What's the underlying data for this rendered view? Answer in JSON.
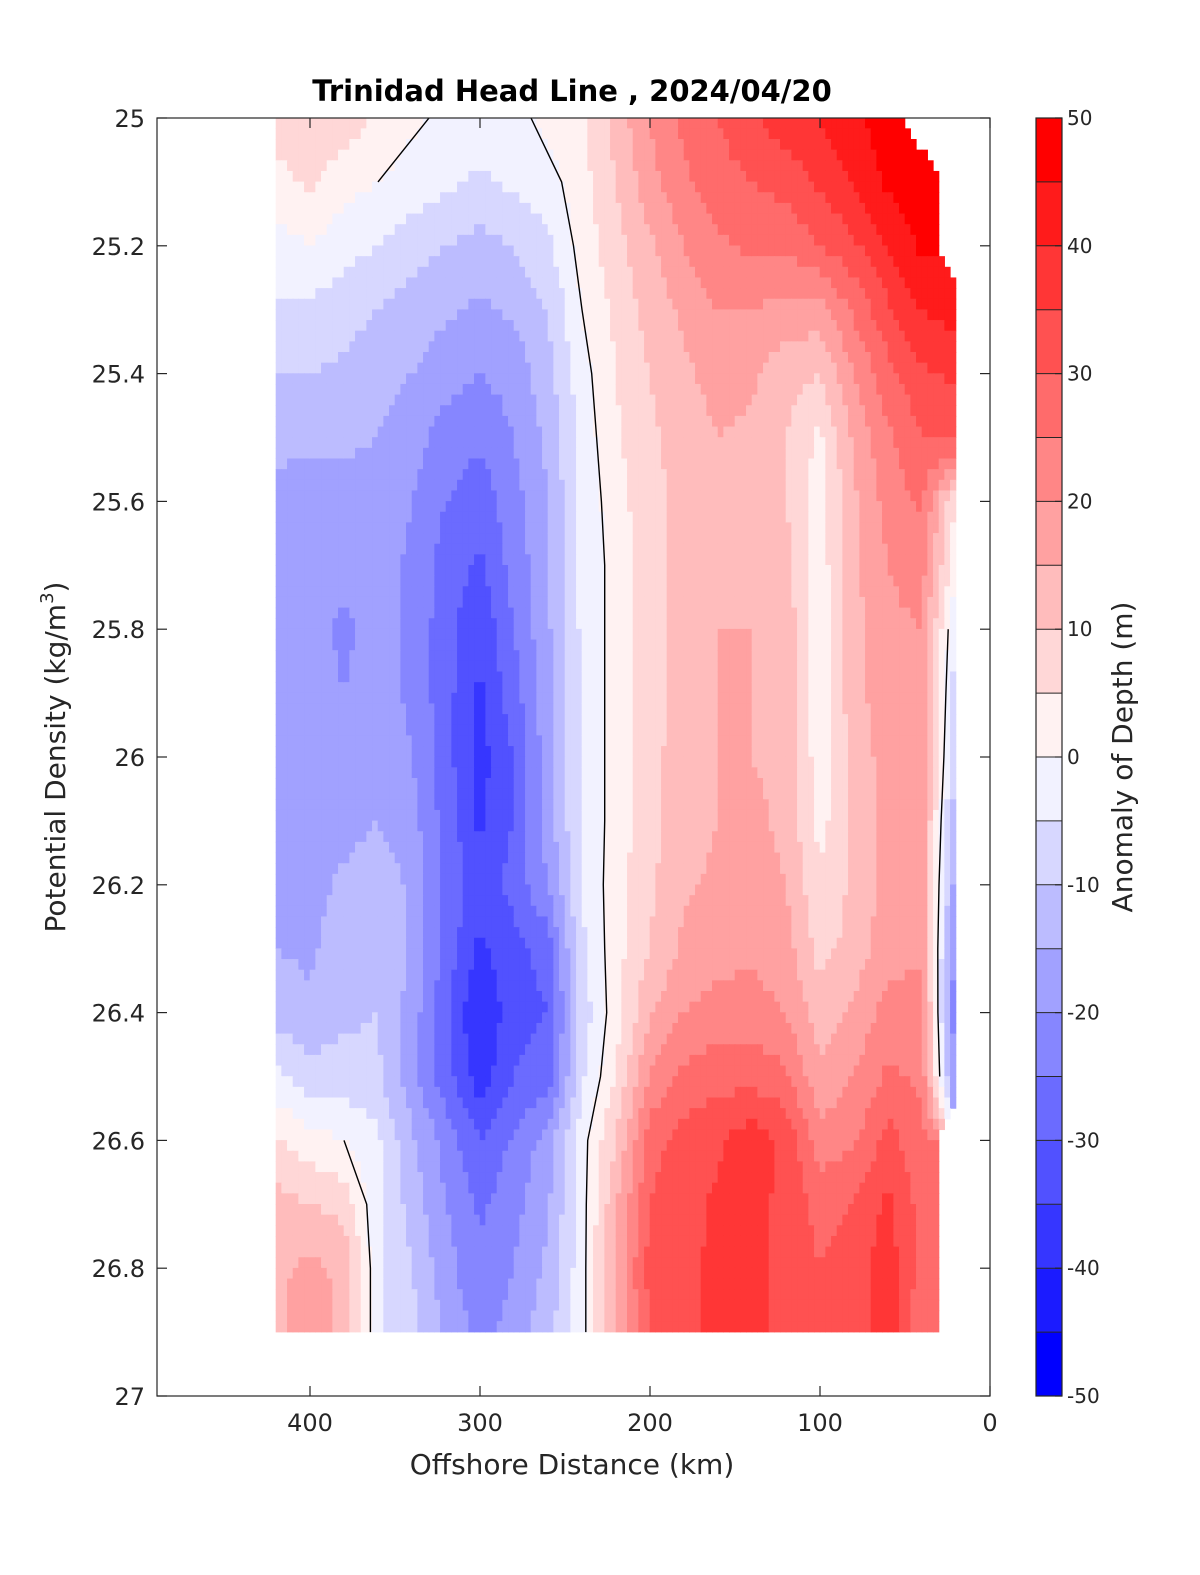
{
  "chart_data": {
    "type": "heatmap",
    "title": "Trinidad Head Line , 2024/04/20",
    "xlabel": "Offshore Distance (km)",
    "ylabel": "Potential Density (kg/m",
    "ylabel_superscript": "3",
    "ylabel_suffix": ")",
    "colorbar_label": "Anomaly of Depth (m)",
    "xlim": [
      490,
      0
    ],
    "x_reversed": true,
    "ylim": [
      25,
      27
    ],
    "y_reversed": true,
    "xticks": [
      "400",
      "300",
      "200",
      "100",
      "0"
    ],
    "yticks": [
      "25",
      "25.2",
      "25.4",
      "25.6",
      "25.8",
      "26",
      "26.2",
      "26.4",
      "26.6",
      "26.8",
      "27"
    ],
    "colorbar_ticks": [
      "50",
      "40",
      "30",
      "20",
      "10",
      "0",
      "-10",
      "-20",
      "-30",
      "-40",
      "-50"
    ],
    "colorbar_range": [
      -50,
      50
    ],
    "contour_interval": 5,
    "zero_contour": true,
    "colors": {
      "negative": "#0000ff",
      "positive": "#ff0000",
      "zero": "#ffffff"
    },
    "x": [
      420,
      400,
      380,
      360,
      340,
      320,
      300,
      280,
      260,
      240,
      220,
      200,
      180,
      160,
      140,
      120,
      100,
      80,
      60,
      40,
      20
    ],
    "y": [
      25.0,
      25.1,
      25.2,
      25.3,
      25.4,
      25.5,
      25.6,
      25.7,
      25.8,
      25.9,
      26.0,
      26.1,
      26.2,
      26.3,
      26.4,
      26.5,
      26.6,
      26.7,
      26.8,
      26.9
    ],
    "values": [
      [
        8,
        10,
        8,
        4,
        1,
        -1,
        -2,
        -1,
        1,
        4,
        12,
        20,
        26,
        30,
        34,
        38,
        40,
        44,
        48,
        null,
        null
      ],
      [
        3,
        6,
        2,
        0,
        -2,
        -4,
        -6,
        -4,
        -2,
        3,
        10,
        18,
        24,
        28,
        30,
        32,
        36,
        40,
        46,
        50,
        null
      ],
      [
        -2,
        0,
        -3,
        -5,
        -8,
        -10,
        -12,
        -10,
        -6,
        2,
        8,
        14,
        20,
        24,
        26,
        26,
        30,
        34,
        40,
        46,
        null
      ],
      [
        -6,
        -6,
        -8,
        -10,
        -12,
        -14,
        -16,
        -14,
        -10,
        0,
        6,
        12,
        16,
        20,
        20,
        18,
        18,
        26,
        34,
        40,
        42
      ],
      [
        -10,
        -10,
        -11,
        -13,
        -15,
        -18,
        -20,
        -18,
        -12,
        -2,
        5,
        10,
        14,
        17,
        16,
        12,
        10,
        20,
        28,
        34,
        36
      ],
      [
        -14,
        -14,
        -14,
        -15,
        -18,
        -22,
        -24,
        -20,
        -14,
        -3,
        4,
        9,
        12,
        15,
        14,
        10,
        4,
        16,
        24,
        30,
        32
      ],
      [
        -16,
        -17,
        -17,
        -17,
        -20,
        -25,
        -28,
        -22,
        -15,
        -4,
        3,
        8,
        12,
        14,
        14,
        10,
        2,
        14,
        22,
        26,
        4
      ],
      [
        -17,
        -18,
        -19,
        -18,
        -21,
        -27,
        -31,
        -23,
        -16,
        -4,
        2,
        8,
        12,
        14,
        14,
        12,
        2,
        14,
        20,
        22,
        2
      ],
      [
        -17,
        -18,
        -21,
        -18,
        -21,
        -28,
        -34,
        -25,
        -16,
        -4,
        2,
        8,
        12,
        15,
        15,
        13,
        2,
        13,
        19,
        20,
        -6
      ],
      [
        -17,
        -18,
        -20,
        -18,
        -21,
        -28,
        -36,
        -27,
        -17,
        -4,
        2,
        8,
        12,
        15,
        15,
        13,
        2,
        13,
        18,
        19,
        -8
      ],
      [
        -17,
        -18,
        -18,
        -17,
        -20,
        -28,
        -37,
        -30,
        -17,
        -4,
        2,
        8,
        13,
        15,
        15,
        14,
        2,
        12,
        17,
        18,
        -10
      ],
      [
        -16,
        -18,
        -17,
        -15,
        -18,
        -27,
        -36,
        -30,
        -18,
        -4,
        2,
        8,
        13,
        15,
        16,
        14,
        3,
        11,
        17,
        18,
        -14
      ],
      [
        -16,
        -17,
        -14,
        -12,
        -16,
        -26,
        -33,
        -28,
        -20,
        -5,
        3,
        9,
        14,
        16,
        17,
        15,
        6,
        11,
        17,
        18,
        -18
      ],
      [
        -15,
        -16,
        -12,
        -10,
        -16,
        -27,
        -36,
        -32,
        -28,
        -6,
        3,
        10,
        16,
        18,
        19,
        17,
        8,
        12,
        18,
        19,
        -22
      ],
      [
        -12,
        -14,
        -11,
        -10,
        -17,
        -29,
        -40,
        -32,
        -30,
        -8,
        3,
        14,
        20,
        22,
        22,
        20,
        12,
        16,
        22,
        22,
        -25
      ],
      [
        -4,
        -8,
        -8,
        -9,
        -18,
        -28,
        -38,
        -30,
        -28,
        -6,
        5,
        20,
        26,
        28,
        28,
        26,
        16,
        20,
        26,
        24,
        -22
      ],
      [
        6,
        2,
        0,
        -4,
        -14,
        -22,
        -30,
        -24,
        -18,
        -2,
        10,
        28,
        32,
        34,
        38,
        34,
        22,
        24,
        32,
        26,
        null
      ],
      [
        12,
        10,
        8,
        -4,
        -12,
        -20,
        -26,
        -22,
        -16,
        -2,
        14,
        30,
        33,
        36,
        36,
        34,
        28,
        30,
        36,
        28,
        null
      ],
      [
        14,
        16,
        14,
        -4,
        -10,
        -18,
        -24,
        -20,
        -14,
        -2,
        16,
        32,
        34,
        36,
        36,
        34,
        30,
        32,
        38,
        28,
        null
      ],
      [
        14,
        18,
        14,
        -4,
        -8,
        -16,
        -22,
        -18,
        -12,
        -2,
        16,
        30,
        34,
        36,
        36,
        34,
        30,
        32,
        38,
        26,
        null
      ]
    ]
  }
}
